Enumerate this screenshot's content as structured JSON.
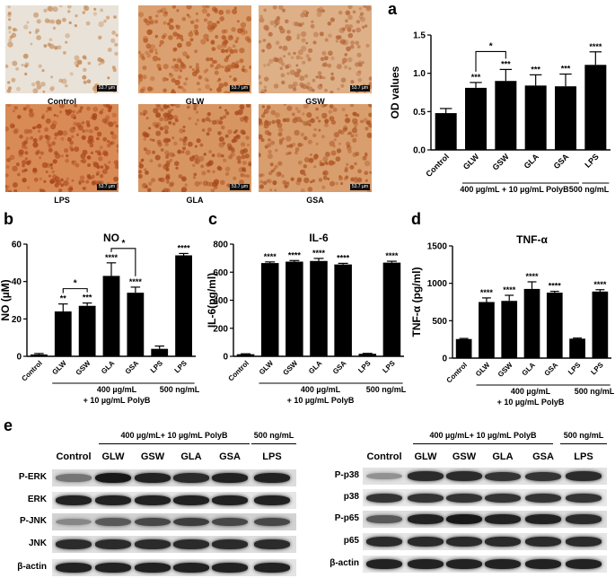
{
  "micrographs": {
    "tiles": [
      {
        "label": "Control",
        "scale": "53.7 µm",
        "base": "#e9e2d8",
        "cell": "#c48a55",
        "density": 0.45
      },
      {
        "label": "GLW",
        "scale": "53.7 µm",
        "base": "#dba070",
        "cell": "#b2541f",
        "density": 0.85
      },
      {
        "label": "GSW",
        "scale": "53.7 µm",
        "base": "#ddb087",
        "cell": "#b5683b",
        "density": 0.75
      },
      {
        "label": "LPS",
        "scale": "53.7 µm",
        "base": "#d98b56",
        "cell": "#a9451a",
        "density": 0.95
      },
      {
        "label": "GLA",
        "scale": "53.7 µm",
        "base": "#d79562",
        "cell": "#a74919",
        "density": 0.9
      },
      {
        "label": "GSA",
        "scale": "53.7 µm",
        "base": "#d99e6d",
        "cell": "#ad5424",
        "density": 0.85
      }
    ]
  },
  "panels": {
    "a": {
      "letter": "a"
    },
    "b": {
      "letter": "b"
    },
    "c": {
      "letter": "c"
    },
    "d": {
      "letter": "d"
    },
    "e": {
      "letter": "e"
    }
  },
  "chart_data": [
    {
      "id": "a",
      "type": "bar",
      "title": "",
      "ylabel": "OD values",
      "ylim": [
        0,
        1.5
      ],
      "yticks": [
        "0.0",
        "0.5",
        "1.0",
        "1.5"
      ],
      "categories": [
        "Control",
        "GLW",
        "GSW",
        "GLA",
        "GSA",
        "LPS"
      ],
      "values": [
        0.48,
        0.81,
        0.9,
        0.84,
        0.83,
        1.11
      ],
      "errors": [
        0.06,
        0.07,
        0.15,
        0.14,
        0.16,
        0.17
      ],
      "stars": [
        "",
        "***",
        "***",
        "***",
        "***",
        "****"
      ],
      "bracket": {
        "from": 1,
        "to": 2,
        "label": "*"
      },
      "groups": [
        {
          "label": "400 µg/mL + 10 µg/mL PolyB",
          "from": 1,
          "to": 4
        },
        {
          "label": "500 ng/mL",
          "from": 5,
          "to": 5
        }
      ]
    },
    {
      "id": "b",
      "type": "bar",
      "title": "NO",
      "ylabel": "NO (µM)",
      "ylim": [
        0,
        60
      ],
      "yticks": [
        "0",
        "20",
        "40",
        "60"
      ],
      "categories": [
        "Control",
        "GLW",
        "GSW",
        "GLA",
        "GSA",
        "LPS",
        "LPS"
      ],
      "values": [
        1,
        24,
        27,
        43,
        34,
        4,
        54
      ],
      "errors": [
        0.5,
        4,
        1.5,
        7,
        3,
        1.5,
        1
      ],
      "stars": [
        "",
        "**",
        "***",
        "****",
        "****",
        "",
        "****"
      ],
      "brackets": [
        {
          "from": 1,
          "to": 2,
          "label": "*"
        },
        {
          "from": 3,
          "to": 4,
          "label": "*"
        }
      ],
      "groups": [
        {
          "label": "400 µg/mL",
          "from": 1,
          "to": 5
        },
        {
          "label": "+ 10 µg/mL PolyB",
          "from": 1,
          "to": 5
        },
        {
          "label": "500 ng/mL",
          "from": 5,
          "to": 6
        }
      ]
    },
    {
      "id": "c",
      "type": "bar",
      "title": "IL-6",
      "ylabel": "IL-6(pg/ml)",
      "ylim": [
        0,
        800
      ],
      "yticks": [
        "0",
        "200",
        "400",
        "600",
        "800"
      ],
      "categories": [
        "Control",
        "GLW",
        "GSW",
        "GLA",
        "GSA",
        "LPS",
        "LPS"
      ],
      "values": [
        15,
        665,
        675,
        680,
        655,
        18,
        668
      ],
      "errors": [
        3,
        8,
        8,
        18,
        8,
        3,
        10
      ],
      "stars": [
        "",
        "****",
        "****",
        "****",
        "****",
        "",
        "****"
      ],
      "groups": [
        {
          "label": "400 µg/mL",
          "from": 1,
          "to": 5
        },
        {
          "label": "+ 10 µg/mL PolyB",
          "from": 1,
          "to": 5
        },
        {
          "label": "500 ng/mL",
          "from": 5,
          "to": 6
        }
      ]
    },
    {
      "id": "d",
      "type": "bar",
      "title": "TNF-α",
      "ylabel": "TNF-α (pg/ml)",
      "ylim": [
        0,
        1500
      ],
      "yticks": [
        "0",
        "500",
        "1000",
        "1500"
      ],
      "categories": [
        "Control",
        "GLW",
        "GSW",
        "GLA",
        "GSA",
        "LPS",
        "LPS"
      ],
      "values": [
        255,
        750,
        765,
        925,
        875,
        260,
        890
      ],
      "errors": [
        8,
        55,
        75,
        95,
        18,
        8,
        25
      ],
      "stars": [
        "",
        "****",
        "****",
        "****",
        "****",
        "",
        "****"
      ],
      "groups": [
        {
          "label": "400 µg/mL",
          "from": 1,
          "to": 5
        },
        {
          "label": "+ 10 µg/mL PolyB",
          "from": 1,
          "to": 5
        },
        {
          "label": "500 ng/mL",
          "from": 5,
          "to": 6
        }
      ]
    }
  ],
  "blots": {
    "left": {
      "header_group": "400 µg/mL+ 10 µg/mL PolyB",
      "header_lps": "500 ng/mL",
      "columns": [
        "Control",
        "GLW",
        "GSW",
        "GLA",
        "GSA",
        "LPS"
      ],
      "rows": [
        {
          "label": "P-ERK",
          "bg": "#dcdcdc",
          "int": [
            0.45,
            0.95,
            0.9,
            0.85,
            0.9,
            0.9
          ]
        },
        {
          "label": "ERK",
          "bg": "#e6e6e6",
          "int": [
            0.9,
            0.9,
            0.9,
            0.9,
            0.9,
            0.9
          ]
        },
        {
          "label": "P-JNK",
          "bg": "#d2d2d2",
          "int": [
            0.35,
            0.6,
            0.7,
            0.75,
            0.7,
            0.7
          ]
        },
        {
          "label": "JNK",
          "bg": "#dedede",
          "int": [
            0.85,
            0.85,
            0.85,
            0.85,
            0.85,
            0.85
          ]
        },
        {
          "label": "β-actin",
          "bg": "#e4e4e4",
          "int": [
            0.9,
            0.9,
            0.9,
            0.9,
            0.9,
            0.9
          ]
        }
      ]
    },
    "right": {
      "header_group": "400 µg/mL+ 10 µg/mL PolyB",
      "header_lps": "500 ng/mL",
      "columns": [
        "Control",
        "GLW",
        "GSW",
        "GLA",
        "GSA",
        "LPS"
      ],
      "rows": [
        {
          "label": "P-p38",
          "bg": "#e2e2e2",
          "int": [
            0.3,
            0.85,
            0.85,
            0.8,
            0.8,
            0.85
          ]
        },
        {
          "label": "p38",
          "bg": "#e8e8e8",
          "int": [
            0.8,
            0.8,
            0.8,
            0.8,
            0.8,
            0.8
          ]
        },
        {
          "label": "P-p65",
          "bg": "#dddddd",
          "int": [
            0.6,
            0.9,
            0.95,
            0.9,
            0.9,
            0.85
          ]
        },
        {
          "label": "p65",
          "bg": "#e4e4e4",
          "int": [
            0.85,
            0.85,
            0.85,
            0.85,
            0.85,
            0.85
          ]
        },
        {
          "label": "β-actin",
          "bg": "#e8e8e8",
          "int": [
            0.9,
            0.9,
            0.9,
            0.9,
            0.9,
            0.9
          ]
        }
      ]
    }
  }
}
